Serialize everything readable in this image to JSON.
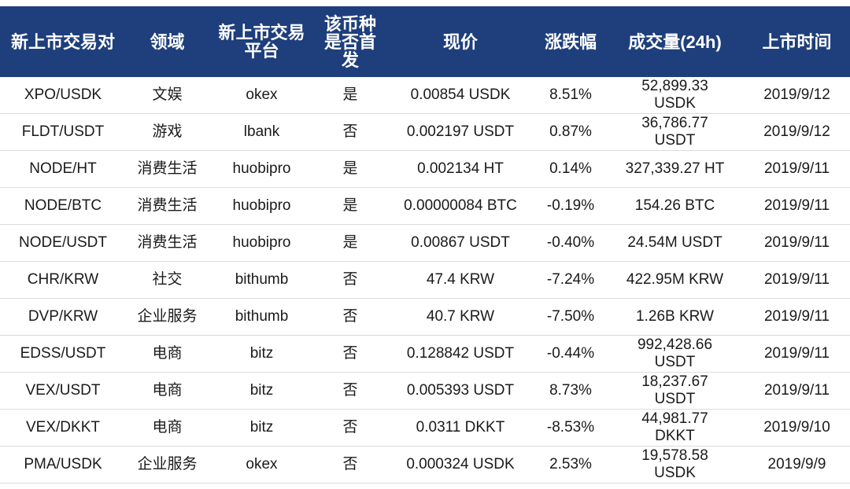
{
  "colors": {
    "header_bg": "#1e3f7c",
    "header_text": "#ffffff",
    "row_divider": "#dcdcdc",
    "body_text": "#1a1a1a"
  },
  "headers": [
    "新上市交易对",
    "领域",
    "新上市交易平台",
    "该币种是否首发",
    "现价",
    "涨跌幅",
    "成交量(24h)",
    "上市时间"
  ],
  "rows": [
    [
      "XPO/USDK",
      "文娱",
      "okex",
      "是",
      "0.00854 USDK",
      "8.51%",
      "52,899.33 USDK",
      "2019/9/12"
    ],
    [
      "FLDT/USDT",
      "游戏",
      "lbank",
      "否",
      "0.002197 USDT",
      "0.87%",
      "36,786.77 USDT",
      "2019/9/12"
    ],
    [
      "NODE/HT",
      "消费生活",
      "huobipro",
      "是",
      "0.002134 HT",
      "0.14%",
      "327,339.27 HT",
      "2019/9/11"
    ],
    [
      "NODE/BTC",
      "消费生活",
      "huobipro",
      "是",
      "0.00000084 BTC",
      "-0.19%",
      "154.26 BTC",
      "2019/9/11"
    ],
    [
      "NODE/USDT",
      "消费生活",
      "huobipro",
      "是",
      "0.00867 USDT",
      "-0.40%",
      "24.54M USDT",
      "2019/9/11"
    ],
    [
      "CHR/KRW",
      "社交",
      "bithumb",
      "否",
      "47.4 KRW",
      "-7.24%",
      "422.95M KRW",
      "2019/9/11"
    ],
    [
      "DVP/KRW",
      "企业服务",
      "bithumb",
      "否",
      "40.7 KRW",
      "-7.50%",
      "1.26B KRW",
      "2019/9/11"
    ],
    [
      "EDSS/USDT",
      "电商",
      "bitz",
      "否",
      "0.128842 USDT",
      "-0.44%",
      "992,428.66 USDT",
      "2019/9/11"
    ],
    [
      "VEX/USDT",
      "电商",
      "bitz",
      "否",
      "0.005393 USDT",
      "8.73%",
      "18,237.67 USDT",
      "2019/9/11"
    ],
    [
      "VEX/DKKT",
      "电商",
      "bitz",
      "否",
      "0.0311 DKKT",
      "-8.53%",
      "44,981.77 DKKT",
      "2019/9/10"
    ],
    [
      "PMA/USDK",
      "企业服务",
      "okex",
      "否",
      "0.000324 USDK",
      "2.53%",
      "19,578.58 USDK",
      "2019/9/9"
    ]
  ]
}
